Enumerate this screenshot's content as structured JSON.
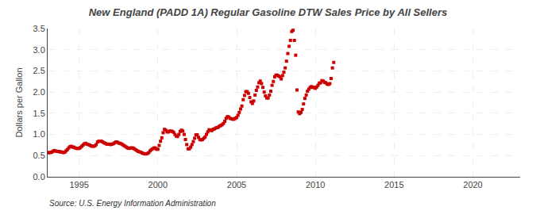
{
  "chart_data": {
    "type": "scatter",
    "title": "New England (PADD 1A) Regular Gasoline DTW Sales Price by All Sellers",
    "ylabel": "Dollars per Gallon",
    "annotations": [
      "Source: U.S. Energy Information Administration"
    ],
    "color": "#cc0000",
    "marker": "square",
    "grid": true,
    "xlim": [
      1993.0,
      2023.0
    ],
    "xticks": [
      1995,
      2000,
      2005,
      2010,
      2015,
      2020
    ],
    "ylim": [
      0.0,
      3.5
    ],
    "yticks": [
      {
        "value": 0.0,
        "label": "0.0"
      },
      0.5,
      {
        "value": 1.0,
        "label": "1.0"
      },
      1.5,
      {
        "value": 2.0,
        "label": "2.0"
      },
      2.5,
      {
        "value": 3.0,
        "label": "3.0"
      },
      3.5
    ],
    "x": [
      1993.0,
      1993.083,
      1993.167,
      1993.25,
      1993.333,
      1993.417,
      1993.5,
      1993.583,
      1993.667,
      1993.75,
      1993.833,
      1993.917,
      1994.0,
      1994.083,
      1994.167,
      1994.25,
      1994.333,
      1994.417,
      1994.5,
      1994.583,
      1994.667,
      1994.75,
      1994.833,
      1994.917,
      1995.0,
      1995.083,
      1995.167,
      1995.25,
      1995.333,
      1995.417,
      1995.5,
      1995.583,
      1995.667,
      1995.75,
      1995.833,
      1995.917,
      1996.0,
      1996.083,
      1996.167,
      1996.25,
      1996.333,
      1996.417,
      1996.5,
      1996.583,
      1996.667,
      1996.75,
      1996.833,
      1996.917,
      1997.0,
      1997.083,
      1997.167,
      1997.25,
      1997.333,
      1997.417,
      1997.5,
      1997.583,
      1997.667,
      1997.75,
      1997.833,
      1997.917,
      1998.0,
      1998.083,
      1998.167,
      1998.25,
      1998.333,
      1998.417,
      1998.5,
      1998.583,
      1998.667,
      1998.75,
      1998.833,
      1998.917,
      1999.0,
      1999.083,
      1999.167,
      1999.25,
      1999.333,
      1999.417,
      1999.5,
      1999.583,
      1999.667,
      1999.75,
      1999.833,
      1999.917,
      2000.0,
      2000.083,
      2000.167,
      2000.25,
      2000.333,
      2000.417,
      2000.5,
      2000.583,
      2000.667,
      2000.75,
      2000.833,
      2000.917,
      2001.0,
      2001.083,
      2001.167,
      2001.25,
      2001.333,
      2001.417,
      2001.5,
      2001.583,
      2001.667,
      2001.75,
      2001.833,
      2001.917,
      2002.0,
      2002.083,
      2002.167,
      2002.25,
      2002.333,
      2002.417,
      2002.5,
      2002.583,
      2002.667,
      2002.75,
      2002.833,
      2002.917,
      2003.0,
      2003.083,
      2003.167,
      2003.25,
      2003.333,
      2003.417,
      2003.5,
      2003.583,
      2003.667,
      2003.75,
      2003.833,
      2003.917,
      2004.0,
      2004.083,
      2004.167,
      2004.25,
      2004.333,
      2004.417,
      2004.5,
      2004.583,
      2004.667,
      2004.75,
      2004.833,
      2004.917,
      2005.0,
      2005.083,
      2005.167,
      2005.25,
      2005.333,
      2005.417,
      2005.5,
      2005.583,
      2005.667,
      2005.75,
      2005.833,
      2005.917,
      2006.0,
      2006.083,
      2006.167,
      2006.25,
      2006.333,
      2006.417,
      2006.5,
      2006.583,
      2006.667,
      2006.75,
      2006.833,
      2006.917,
      2007.0,
      2007.083,
      2007.167,
      2007.25,
      2007.333,
      2007.417,
      2007.5,
      2007.583,
      2007.667,
      2007.75,
      2007.833,
      2007.917,
      2008.0,
      2008.083,
      2008.167,
      2008.25,
      2008.333,
      2008.417,
      2008.5,
      2008.583,
      2008.667,
      2008.75,
      2008.833,
      2008.917,
      2009.0,
      2009.083,
      2009.167,
      2009.25,
      2009.333,
      2009.417,
      2009.5,
      2009.583,
      2009.667,
      2009.75,
      2009.833,
      2009.917,
      2010.0,
      2010.083,
      2010.167,
      2010.25,
      2010.333,
      2010.417,
      2010.5,
      2010.583,
      2010.667,
      2010.75,
      2010.833,
      2010.917,
      2011.0,
      2011.083,
      2011.167
    ],
    "values": [
      0.57,
      0.57,
      0.57,
      0.58,
      0.6,
      0.62,
      0.61,
      0.6,
      0.6,
      0.59,
      0.59,
      0.58,
      0.57,
      0.58,
      0.61,
      0.64,
      0.68,
      0.71,
      0.72,
      0.7,
      0.7,
      0.68,
      0.67,
      0.67,
      0.67,
      0.69,
      0.72,
      0.75,
      0.78,
      0.79,
      0.77,
      0.76,
      0.75,
      0.73,
      0.72,
      0.72,
      0.73,
      0.76,
      0.82,
      0.84,
      0.84,
      0.84,
      0.82,
      0.8,
      0.79,
      0.77,
      0.77,
      0.77,
      0.76,
      0.77,
      0.78,
      0.8,
      0.82,
      0.82,
      0.8,
      0.79,
      0.78,
      0.76,
      0.74,
      0.72,
      0.7,
      0.68,
      0.67,
      0.68,
      0.68,
      0.68,
      0.66,
      0.64,
      0.62,
      0.6,
      0.59,
      0.58,
      0.56,
      0.55,
      0.54,
      0.54,
      0.55,
      0.57,
      0.61,
      0.64,
      0.66,
      0.68,
      0.68,
      0.65,
      0.65,
      0.74,
      0.84,
      0.92,
      1.04,
      1.12,
      1.1,
      1.06,
      1.06,
      1.08,
      1.08,
      1.07,
      1.05,
      1.0,
      0.96,
      0.95,
      1.0,
      1.07,
      1.1,
      1.08,
      1.0,
      0.88,
      0.76,
      0.66,
      0.66,
      0.7,
      0.76,
      0.83,
      0.91,
      0.99,
      0.99,
      0.93,
      0.88,
      0.87,
      0.88,
      0.91,
      0.94,
      1.0,
      1.06,
      1.11,
      1.1,
      1.09,
      1.12,
      1.13,
      1.15,
      1.16,
      1.17,
      1.2,
      1.21,
      1.23,
      1.26,
      1.31,
      1.38,
      1.42,
      1.41,
      1.38,
      1.37,
      1.36,
      1.36,
      1.38,
      1.4,
      1.45,
      1.52,
      1.6,
      1.67,
      1.82,
      1.92,
      2.01,
      2.01,
      1.97,
      1.87,
      1.77,
      1.73,
      1.79,
      1.93,
      2.04,
      2.12,
      2.22,
      2.26,
      2.2,
      2.11,
      2.0,
      1.91,
      1.86,
      1.86,
      1.93,
      2.02,
      2.16,
      2.25,
      2.36,
      2.4,
      2.4,
      2.38,
      2.36,
      2.31,
      2.39,
      2.47,
      2.57,
      2.73,
      2.91,
      3.08,
      3.22,
      3.43,
      3.46,
      3.22,
      2.87,
      2.05,
      1.53,
      1.49,
      1.52,
      1.59,
      1.72,
      1.85,
      1.93,
      2.02,
      2.07,
      2.11,
      2.13,
      2.11,
      2.11,
      2.09,
      2.12,
      2.16,
      2.21,
      2.22,
      2.27,
      2.26,
      2.23,
      2.22,
      2.19,
      2.18,
      2.2,
      2.32,
      2.57,
      2.7
    ]
  }
}
